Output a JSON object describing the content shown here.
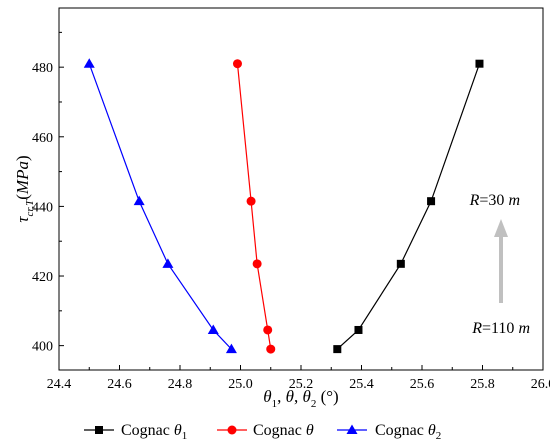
{
  "chart_data": {
    "type": "line",
    "xlabel_parts": [
      {
        "t": "θ",
        "i": true
      },
      {
        "t": "1",
        "sub": true
      },
      {
        "t": ", "
      },
      {
        "t": "θ",
        "i": true
      },
      {
        "t": ", "
      },
      {
        "t": "θ",
        "i": true
      },
      {
        "t": "2",
        "sub": true
      },
      {
        "t": " (°)"
      }
    ],
    "ylabel_parts": [
      {
        "t": "τ",
        "i": true
      },
      {
        "t": "cr,T",
        "sub": true,
        "i": true
      },
      {
        "t": "("
      },
      {
        "t": "MPa",
        "i": true
      },
      {
        "t": ")"
      }
    ],
    "xlim": [
      24.4,
      26.0
    ],
    "ylim": [
      393,
      497
    ],
    "x_ticks": [
      24.4,
      24.6,
      24.8,
      25.0,
      25.2,
      25.4,
      25.6,
      25.8,
      26.0
    ],
    "y_ticks": [
      400,
      420,
      440,
      460,
      480
    ],
    "x_tick_labels": [
      "24.4",
      "24.6",
      "24.8",
      "25.0",
      "25.2",
      "25.4",
      "25.6",
      "25.8",
      "26.0"
    ],
    "y_tick_labels": [
      "400",
      "420",
      "440",
      "460",
      "480"
    ],
    "grid": false,
    "legend_position": "bottom",
    "series": [
      {
        "name_parts": [
          {
            "t": "Cognac "
          },
          {
            "t": "θ",
            "i": true
          },
          {
            "t": "1",
            "sub": true
          }
        ],
        "color": "#000000",
        "marker": "square",
        "points": [
          [
            25.32,
            399
          ],
          [
            25.39,
            404.5
          ],
          [
            25.53,
            423.5
          ],
          [
            25.63,
            441.5
          ],
          [
            25.79,
            481
          ]
        ]
      },
      {
        "name_parts": [
          {
            "t": "Cognac "
          },
          {
            "t": "θ",
            "i": true
          }
        ],
        "color": "#ff0000",
        "marker": "circle",
        "points": [
          [
            25.1,
            399
          ],
          [
            25.09,
            404.5
          ],
          [
            25.055,
            423.5
          ],
          [
            25.035,
            441.5
          ],
          [
            24.99,
            481
          ]
        ]
      },
      {
        "name_parts": [
          {
            "t": "Cognac "
          },
          {
            "t": "θ",
            "i": true
          },
          {
            "t": "2",
            "sub": true
          }
        ],
        "color": "#0000ff",
        "marker": "triangle",
        "points": [
          [
            24.97,
            399
          ],
          [
            24.91,
            404.5
          ],
          [
            24.76,
            423.5
          ],
          [
            24.665,
            441.5
          ],
          [
            24.5,
            481
          ]
        ]
      }
    ],
    "annotations": [
      {
        "parts": [
          {
            "t": "R",
            "i": true
          },
          {
            "t": "=30 "
          },
          {
            "t": "m",
            "i": true
          }
        ]
      },
      {
        "parts": [
          {
            "t": "R",
            "i": true
          },
          {
            "t": "=110 "
          },
          {
            "t": "m",
            "i": true
          }
        ]
      }
    ],
    "arrow_color": "#c0c0c0"
  }
}
